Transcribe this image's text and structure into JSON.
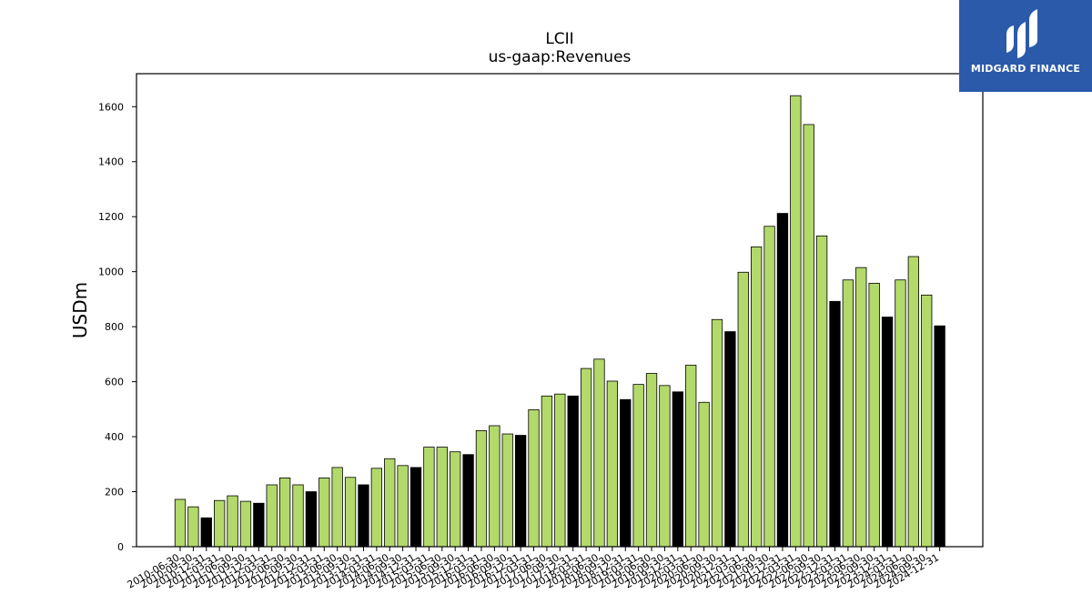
{
  "logo": {
    "text": "MIDGARD FINANCE",
    "background": "#2b5aaa"
  },
  "chart_data": {
    "type": "bar",
    "title": "LCII",
    "subtitle": "us-gaap:Revenues",
    "xlabel": "",
    "ylabel": "USDm",
    "ylim": [
      0,
      1720
    ],
    "yticks": [
      0,
      200,
      400,
      600,
      800,
      1000,
      1200,
      1400,
      1600
    ],
    "grid": false,
    "colors": {
      "quarter": "#b3d96b",
      "year_end": "#000000",
      "edge": "#000000"
    },
    "categories": [
      "2010-06-30",
      "2010-09-30",
      "2010-12-31",
      "2011-03-31",
      "2011-06-30",
      "2011-09-30",
      "2011-12-31",
      "2012-03-31",
      "2012-06-30",
      "2012-09-30",
      "2012-12-31",
      "2013-03-31",
      "2013-06-30",
      "2013-09-30",
      "2013-12-31",
      "2014-03-31",
      "2014-06-30",
      "2014-09-30",
      "2014-12-31",
      "2015-03-31",
      "2015-06-30",
      "2015-09-30",
      "2015-12-31",
      "2016-03-31",
      "2016-06-30",
      "2016-09-30",
      "2016-12-31",
      "2017-03-31",
      "2017-06-30",
      "2017-09-30",
      "2017-12-31",
      "2018-03-31",
      "2018-06-30",
      "2018-09-30",
      "2018-12-31",
      "2019-03-31",
      "2019-06-30",
      "2019-09-30",
      "2019-12-31",
      "2020-03-31",
      "2020-06-30",
      "2020-09-30",
      "2020-12-31",
      "2021-03-31",
      "2021-06-30",
      "2021-09-30",
      "2021-12-31",
      "2022-03-31",
      "2022-06-30",
      "2022-09-30",
      "2022-12-31",
      "2023-03-31",
      "2023-06-30",
      "2023-09-30",
      "2023-12-31",
      "2024-03-31",
      "2024-06-30",
      "2024-09-30",
      "2024-12-31"
    ],
    "values": [
      172,
      145,
      105,
      168,
      185,
      165,
      158,
      225,
      250,
      225,
      200,
      250,
      288,
      252,
      225,
      285,
      320,
      295,
      288,
      362,
      362,
      345,
      335,
      422,
      440,
      410,
      405,
      498,
      548,
      555,
      548,
      648,
      682,
      602,
      535,
      590,
      630,
      586,
      563,
      660,
      525,
      826,
      782,
      998,
      1090,
      1165,
      1212,
      1640,
      1535,
      1130,
      892,
      970,
      1015,
      958,
      835,
      970,
      1055,
      915,
      803
    ],
    "year_end": [
      false,
      false,
      true,
      false,
      false,
      false,
      true,
      false,
      false,
      false,
      true,
      false,
      false,
      false,
      true,
      false,
      false,
      false,
      true,
      false,
      false,
      false,
      true,
      false,
      false,
      false,
      true,
      false,
      false,
      false,
      true,
      false,
      false,
      false,
      true,
      false,
      false,
      false,
      true,
      false,
      false,
      false,
      true,
      false,
      false,
      false,
      true,
      false,
      false,
      false,
      true,
      false,
      false,
      false,
      true,
      false,
      false,
      false,
      true
    ]
  }
}
